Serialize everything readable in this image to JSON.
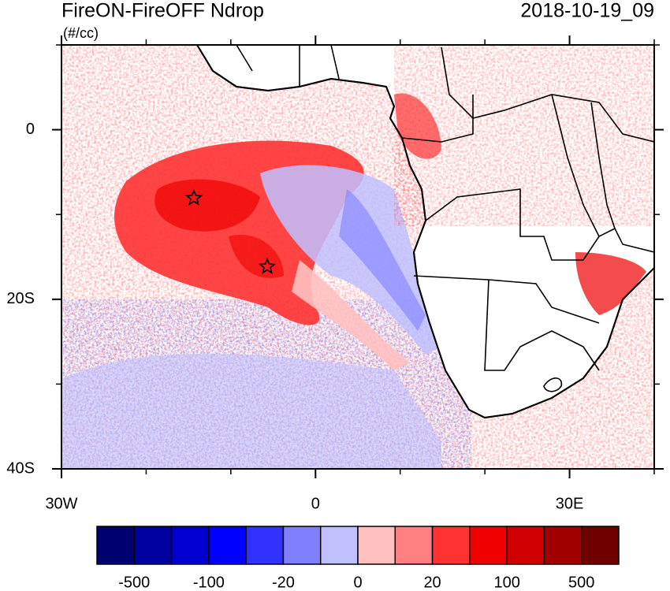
{
  "title": "FireON-FireOFF Ndrop",
  "date": "2018-10-19_09",
  "units": "(#/cc)",
  "map": {
    "lon_range": [
      -30,
      40
    ],
    "lat_range": [
      -40,
      10
    ],
    "xticks": [
      {
        "value": -30,
        "label": "30W"
      },
      {
        "value": 0,
        "label": "0"
      },
      {
        "value": 30,
        "label": "30E"
      }
    ],
    "yticks": [
      {
        "value": 0,
        "label": "0"
      },
      {
        "value": -20,
        "label": "20S"
      },
      {
        "value": -40,
        "label": "40S"
      }
    ],
    "minor_xticks": [
      -20,
      -10,
      10,
      20,
      40
    ],
    "minor_yticks": [
      10,
      -10,
      -30
    ]
  },
  "colorbar": {
    "colors": [
      "#00006e",
      "#0000a0",
      "#0000d0",
      "#0000ff",
      "#3232ff",
      "#8080ff",
      "#c0c0ff",
      "#ffc0c0",
      "#ff8080",
      "#ff3232",
      "#f00000",
      "#d00000",
      "#a00000",
      "#700000"
    ],
    "labels": [
      "-500",
      "-100",
      "-20",
      "0",
      "20",
      "100",
      "500"
    ]
  }
}
